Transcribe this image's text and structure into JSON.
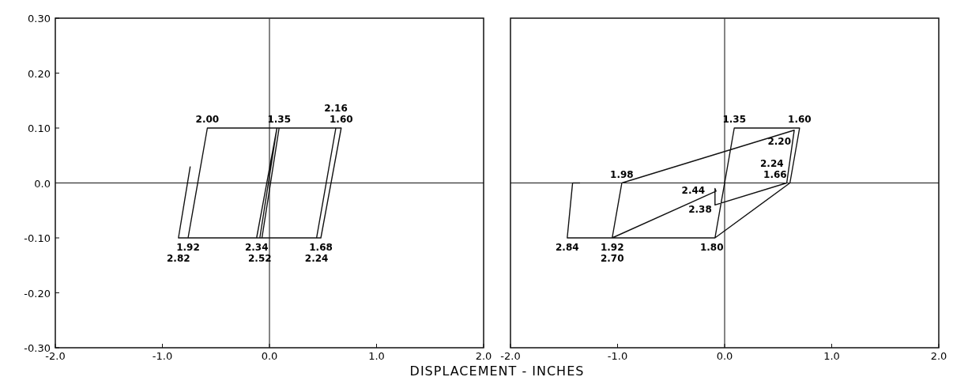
{
  "chart_data": [
    {
      "type": "line",
      "xlabel": "DISPLACEMENT - INCHES",
      "xlim": [
        -2,
        2
      ],
      "ylim": [
        -0.3,
        0.3
      ],
      "xticks": [
        {
          "value": -2,
          "label": "-2.0"
        },
        {
          "value": -1,
          "label": "-1.0"
        },
        {
          "value": 0,
          "label": "0.0"
        },
        {
          "value": 1,
          "label": "1.0"
        },
        {
          "value": 2,
          "label": "2.0"
        }
      ],
      "yticks": [
        {
          "value": 0.3,
          "label": "0.30"
        },
        {
          "value": 0.2,
          "label": "0.20"
        },
        {
          "value": 0.1,
          "label": "0.10"
        },
        {
          "value": 0,
          "label": "0.0"
        },
        {
          "value": -0.1,
          "label": "-0.10"
        },
        {
          "value": -0.2,
          "label": "-0.20"
        },
        {
          "value": -0.3,
          "label": "-0.30"
        }
      ],
      "grid": false,
      "marker": "none",
      "line_style": "solid",
      "series": [
        {
          "color": "#111111",
          "x": [
            -0.07,
            0.09,
            0.67,
            0.48,
            -0.76,
            -0.58,
            0.62,
            0.44,
            -0.12,
            0.07,
            -0.09,
            -0.85,
            -0.74
          ],
          "values": [
            -0.1,
            0.1,
            0.1,
            -0.1,
            -0.1,
            0.1,
            0.1,
            -0.1,
            -0.1,
            0.1,
            -0.1,
            -0.1,
            0.03
          ]
        }
      ],
      "ref_lines": [
        {
          "axis": "x",
          "value": 0
        },
        {
          "axis": "y",
          "value": 0
        }
      ],
      "annotations": [
        {
          "text": "1.35",
          "x": 0.09,
          "y": 0.1
        },
        {
          "text": "1.60",
          "x": 0.67,
          "y": 0.1
        },
        {
          "text": "1.68",
          "x": 0.48,
          "y": -0.1
        },
        {
          "text": "1.92",
          "x": -0.76,
          "y": -0.1
        },
        {
          "text": "2.00",
          "x": -0.58,
          "y": 0.1
        },
        {
          "text": "2.16",
          "x": 0.62,
          "y": 0.1
        },
        {
          "text": "2.24",
          "x": 0.44,
          "y": -0.1
        },
        {
          "text": "2.34",
          "x": -0.12,
          "y": -0.1
        },
        {
          "text": "2.52",
          "x": -0.09,
          "y": -0.1
        },
        {
          "text": "2.82",
          "x": -0.85,
          "y": -0.1
        }
      ]
    },
    {
      "type": "line",
      "xlim": [
        -2,
        2
      ],
      "ylim": [
        -0.3,
        0.3
      ],
      "xticks": [
        {
          "value": -2,
          "label": "-2.0"
        },
        {
          "value": -1,
          "label": "-1.0"
        },
        {
          "value": 0,
          "label": "0.0"
        },
        {
          "value": 1,
          "label": "1.0"
        },
        {
          "value": 2,
          "label": "2.0"
        }
      ],
      "tick_labels": "x",
      "grid": false,
      "marker": "none",
      "line_style": "solid",
      "series": [
        {
          "color": "#111111",
          "x": [
            -0.09,
            0.09,
            0.7,
            0.61,
            -0.09,
            -0.12,
            -1.05,
            -0.96,
            0.65,
            0.58,
            -0.09,
            -0.09,
            -0.08,
            -1.05,
            -1.47,
            -1.42,
            -1.35
          ],
          "values": [
            -0.1,
            0.1,
            0.1,
            0,
            -0.1,
            -0.1,
            -0.1,
            0,
            0.096,
            0,
            -0.04,
            -0.01,
            -0.015,
            -0.1,
            -0.1,
            0,
            0
          ]
        }
      ],
      "ref_lines": [
        {
          "axis": "x",
          "value": 0
        },
        {
          "axis": "y",
          "value": 0
        }
      ],
      "annotations": [
        {
          "text": "1.35",
          "x": 0.09,
          "y": 0.1
        },
        {
          "text": "1.60",
          "x": 0.7,
          "y": 0.1
        },
        {
          "text": "1.66",
          "x": 0.61,
          "y": 0
        },
        {
          "text": "1.80",
          "x": -0.12,
          "y": -0.1
        },
        {
          "text": "1.92",
          "x": -1.05,
          "y": -0.1
        },
        {
          "text": "1.98",
          "x": -0.96,
          "y": 0
        },
        {
          "text": "2.20",
          "x": 0.65,
          "y": 0.096
        },
        {
          "text": "2.24",
          "x": 0.58,
          "y": 0
        },
        {
          "text": "2.38",
          "x": -0.09,
          "y": -0.04
        },
        {
          "text": "2.44",
          "x": -0.08,
          "y": -0.015
        },
        {
          "text": "2.70",
          "x": -1.05,
          "y": -0.1
        },
        {
          "text": "2.84",
          "x": -1.47,
          "y": -0.1
        }
      ]
    }
  ]
}
